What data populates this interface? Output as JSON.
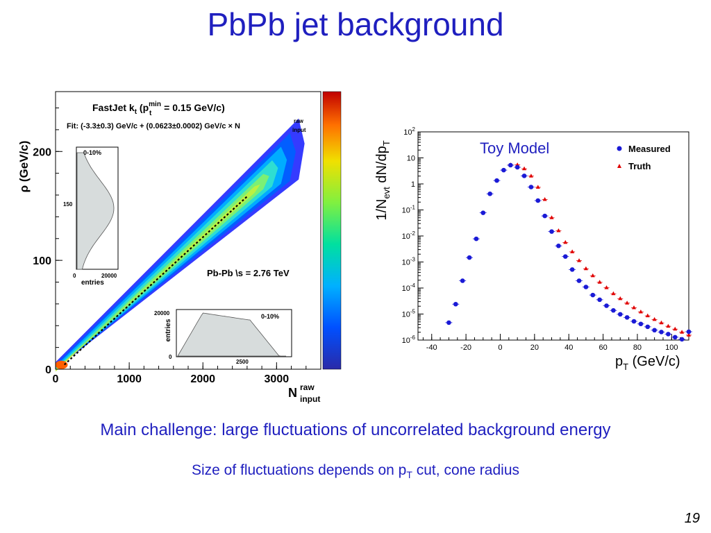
{
  "slide": {
    "title": "PbPb jet background",
    "subtitle1": "Main challenge: large fluctuations of uncorrelated background energy",
    "subtitle2_pre": "Size of fluctuations depends on p",
    "subtitle2_sub": "T",
    "subtitle2_post": " cut, cone radius",
    "page_number": "19"
  },
  "colors": {
    "title_blue": "#1f1fbf",
    "measured_blue": "#1a1ad6",
    "truth_red": "#e00000",
    "hist_fill": "#d7dcdc"
  },
  "chart_data": [
    {
      "type": "heatmap",
      "xlabel_main": "N",
      "xlabel_sup": "raw",
      "xlabel_sub": "input",
      "ylabel": "ρ (GeV/c)",
      "xlim": [
        0,
        3600
      ],
      "ylim": [
        0,
        255
      ],
      "xticks": [
        "0",
        "1000",
        "2000",
        "3000"
      ],
      "yticks": [
        "0",
        "100",
        "200"
      ],
      "annotation1_pre": "FastJet k",
      "annotation1_sub": "t",
      "annotation1_mid": "  (p",
      "annotation1_sup": "min",
      "annotation1_sub2": "t",
      "annotation1_post": " = 0.15 GeV/c)",
      "annotation2_text": "Fit: (-3.3±0.3) GeV/c + (0.0623±0.0002) GeV/c × N",
      "annotation2_sup": "raw",
      "annotation2_sub": "input",
      "annotation3": "Pb-Pb \\s = 2.76 TeV",
      "fit": {
        "intercept": -3.3,
        "slope": 0.0623,
        "x_range": [
          0,
          2600
        ]
      },
      "colorbar": "rainbow (blue to red)",
      "inset_left": {
        "label": "0-10%",
        "xlabel": "entries",
        "xticks": [
          "0",
          "20000"
        ],
        "yticks": [
          "150"
        ],
        "orientation": "horizontal histogram"
      },
      "inset_bottom": {
        "label": "0-10%",
        "ylabel": "entries",
        "yticks": [
          "0",
          "20000"
        ],
        "xticks": [
          "2500"
        ],
        "orientation": "vertical histogram"
      }
    },
    {
      "type": "scatter",
      "annotation": "Toy Model",
      "xlabel_main": "p",
      "xlabel_sub": "T",
      "xlabel_post": " (GeV/c)",
      "ylabel_pre": "1/N",
      "ylabel_sub": "evt",
      "ylabel_mid": " dN/dp",
      "ylabel_sub2": "T",
      "xlim": [
        -48,
        110
      ],
      "ylim_log10": [
        -6,
        2
      ],
      "y_scale": "log",
      "xticks": [
        "-40",
        "-20",
        "0",
        "20",
        "40",
        "60",
        "80",
        "100"
      ],
      "yticks": [
        {
          "base": "10",
          "exp": "2"
        },
        {
          "base": "10",
          "exp": ""
        },
        {
          "base": "1",
          "exp": ""
        },
        {
          "base": "10",
          "exp": "-1"
        },
        {
          "base": "10",
          "exp": "-2"
        },
        {
          "base": "10",
          "exp": "-3"
        },
        {
          "base": "10",
          "exp": "-4"
        },
        {
          "base": "10",
          "exp": "-5"
        },
        {
          "base": "10",
          "exp": "-6"
        }
      ],
      "legend_position": "top-right",
      "series": [
        {
          "name": "Measured",
          "marker": "circle",
          "points": [
            [
              -30,
              -5.33
            ],
            [
              -26,
              -4.62
            ],
            [
              -22,
              -3.72
            ],
            [
              -18,
              -2.83
            ],
            [
              -14,
              -2.11
            ],
            [
              -10,
              -1.11
            ],
            [
              -6,
              -0.38
            ],
            [
              -2,
              0.13
            ],
            [
              2,
              0.53
            ],
            [
              6,
              0.72
            ],
            [
              10,
              0.64
            ],
            [
              14,
              0.31
            ],
            [
              18,
              -0.12
            ],
            [
              22,
              -0.64
            ],
            [
              26,
              -1.23
            ],
            [
              30,
              -1.83
            ],
            [
              34,
              -2.38
            ],
            [
              38,
              -2.79
            ],
            [
              42,
              -3.29
            ],
            [
              46,
              -3.72
            ],
            [
              50,
              -3.96
            ],
            [
              54,
              -4.27
            ],
            [
              58,
              -4.45
            ],
            [
              62,
              -4.68
            ],
            [
              66,
              -4.86
            ],
            [
              70,
              -5.01
            ],
            [
              74,
              -5.13
            ],
            [
              78,
              -5.28
            ],
            [
              82,
              -5.38
            ],
            [
              86,
              -5.49
            ],
            [
              90,
              -5.62
            ],
            [
              94,
              -5.69
            ],
            [
              98,
              -5.77
            ],
            [
              102,
              -5.89
            ],
            [
              106,
              -5.97
            ],
            [
              110,
              -5.68
            ]
          ]
        },
        {
          "name": "Truth",
          "marker": "triangle",
          "points": [
            [
              6,
              0.73
            ],
            [
              10,
              0.73
            ],
            [
              14,
              0.58
            ],
            [
              18,
              0.3
            ],
            [
              22,
              -0.13
            ],
            [
              26,
              -0.6
            ],
            [
              30,
              -1.3
            ],
            [
              34,
              -1.8
            ],
            [
              38,
              -2.25
            ],
            [
              42,
              -2.61
            ],
            [
              46,
              -2.95
            ],
            [
              50,
              -3.26
            ],
            [
              54,
              -3.53
            ],
            [
              58,
              -3.78
            ],
            [
              62,
              -3.99
            ],
            [
              66,
              -4.22
            ],
            [
              70,
              -4.41
            ],
            [
              74,
              -4.58
            ],
            [
              78,
              -4.76
            ],
            [
              82,
              -4.92
            ],
            [
              86,
              -5.07
            ],
            [
              90,
              -5.21
            ],
            [
              94,
              -5.34
            ],
            [
              98,
              -5.47
            ],
            [
              102,
              -5.58
            ],
            [
              106,
              -5.7
            ],
            [
              110,
              -5.81
            ]
          ]
        }
      ]
    }
  ]
}
